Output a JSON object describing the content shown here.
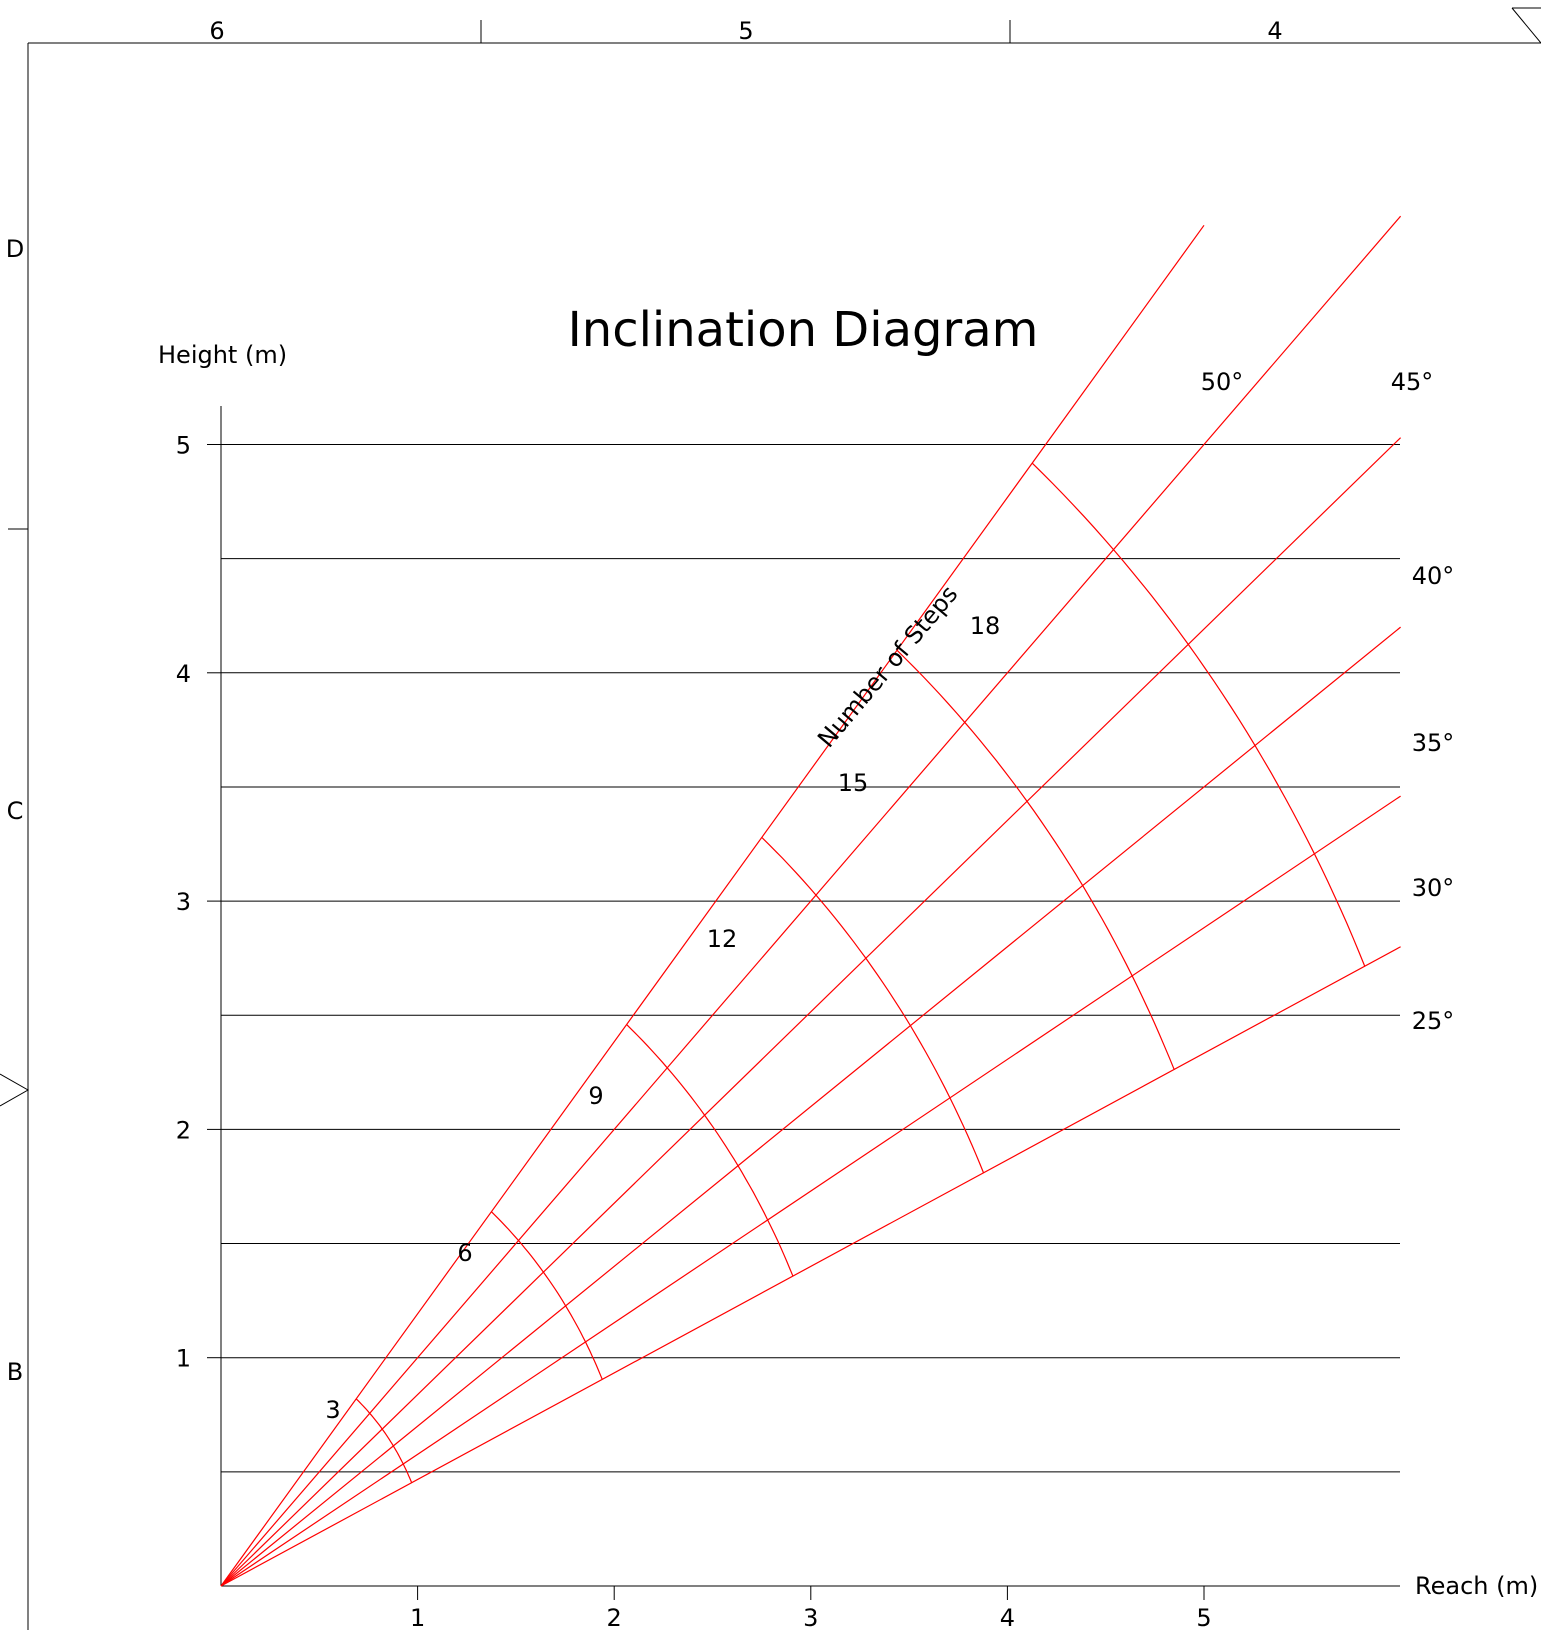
{
  "colors": {
    "background": "#ffffff",
    "ink": "#000000",
    "accent": "#ff0000"
  },
  "frame": {
    "top_zone_labels": [
      "6",
      "5",
      "4"
    ],
    "side_zone_labels": [
      "D",
      "C",
      "B"
    ]
  },
  "chart_data": {
    "type": "line",
    "title": "Inclination Diagram",
    "xlabel": "Reach (m)",
    "ylabel": "Height (m)",
    "xlim": [
      0,
      6
    ],
    "ylim": [
      0,
      5.15
    ],
    "x_ticks": [
      "1",
      "2",
      "3",
      "4",
      "5"
    ],
    "y_ticks": [
      "1",
      "2",
      "3",
      "4",
      "5"
    ],
    "grid": "horizontal lines every 0.5 m",
    "step_axis_label": "Number of Steps",
    "series": [
      {
        "name": "50°",
        "angle_deg": 50,
        "x": [
          0,
          5.0
        ],
        "y": [
          0,
          5.96
        ]
      },
      {
        "name": "45°",
        "angle_deg": 45,
        "x": [
          0,
          6.0
        ],
        "y": [
          0,
          6.0
        ]
      },
      {
        "name": "40°",
        "angle_deg": 40,
        "x": [
          0,
          6.0
        ],
        "y": [
          0,
          5.03
        ]
      },
      {
        "name": "35°",
        "angle_deg": 35,
        "x": [
          0,
          6.0
        ],
        "y": [
          0,
          4.2
        ]
      },
      {
        "name": "30°",
        "angle_deg": 30,
        "x": [
          0,
          6.0
        ],
        "y": [
          0,
          3.46
        ]
      },
      {
        "name": "25°",
        "angle_deg": 25,
        "x": [
          0,
          6.0
        ],
        "y": [
          0,
          2.8
        ]
      }
    ],
    "step_arcs": [
      {
        "label": "3",
        "steps": 3,
        "radius": 1.07
      },
      {
        "label": "6",
        "steps": 6,
        "radius": 2.14
      },
      {
        "label": "9",
        "steps": 9,
        "radius": 3.21
      },
      {
        "label": "12",
        "steps": 12,
        "radius": 4.28
      },
      {
        "label": "15",
        "steps": 15,
        "radius": 5.35
      },
      {
        "label": "18",
        "steps": 18,
        "radius": 6.42
      }
    ]
  }
}
